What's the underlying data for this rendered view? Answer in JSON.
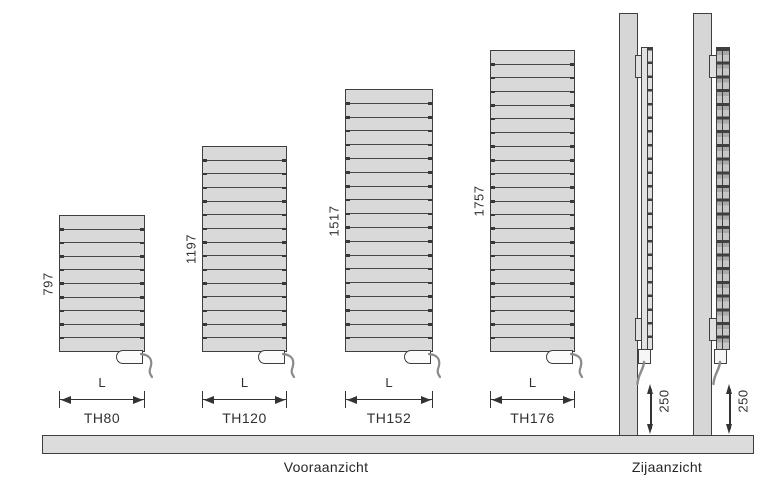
{
  "front_view": {
    "caption": "Vooraanzicht",
    "width_label": "L",
    "radiators": [
      {
        "model": "TH80",
        "height": "797",
        "slats": 10
      },
      {
        "model": "TH120",
        "height": "1197",
        "slats": 15
      },
      {
        "model": "TH152",
        "height": "1517",
        "slats": 19
      },
      {
        "model": "TH176",
        "height": "1757",
        "slats": 22
      }
    ]
  },
  "side_view": {
    "caption": "Zijaanzicht",
    "instances": [
      {
        "floor_clearance": "250"
      },
      {
        "floor_clearance": "250"
      }
    ]
  },
  "colors": {
    "panel_fill": "#d9d9d9",
    "outline": "#3f3f3f",
    "cable": "#8a8a8a"
  }
}
